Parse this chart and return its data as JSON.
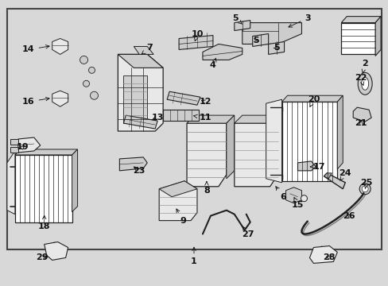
{
  "bg_color": "#d8d8d8",
  "border_color": "#444444",
  "fig_width": 4.89,
  "fig_height": 3.6,
  "dpi": 100,
  "text_color": "#111111",
  "label_fontsize": 8.0,
  "label_fontweight": "bold",
  "line_color": "#222222",
  "part_face": "#e8e8e8",
  "part_face2": "#cccccc"
}
